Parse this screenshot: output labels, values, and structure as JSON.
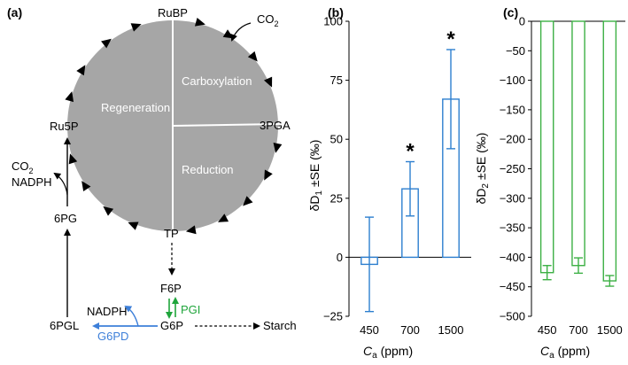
{
  "panel_a": {
    "label": "(a)",
    "sectors": {
      "regeneration": "Regeneration",
      "carboxylation": "Carboxylation",
      "reduction": "Reduction"
    },
    "nodes": {
      "rubp": "RuBP",
      "co2": "CO",
      "co2_sub": "2",
      "pga": "3PGA",
      "tp": "TP",
      "ru5p": "Ru5P",
      "co2_release": "CO",
      "co2_release_sub": "2",
      "nadph_release": "NADPH",
      "pg6": "6PG",
      "f6p": "F6P",
      "pgi": "PGI",
      "nadph": "NADPH",
      "g6p": "G6P",
      "pgl6": "6PGL",
      "g6pd": "G6PD",
      "starch": "Starch"
    },
    "colors": {
      "circle": "#a6a6a6",
      "pgi": "#1fa53b",
      "g6pd": "#3d7fd9"
    }
  },
  "chart_data": [
    {
      "panel": "(b)",
      "type": "bar",
      "categories": [
        "450",
        "700",
        "1500"
      ],
      "values": [
        -3,
        29,
        67
      ],
      "errors": [
        20,
        11.5,
        21
      ],
      "significance": [
        "",
        "*",
        "*"
      ],
      "ylabel": "δD",
      "ylabel_sub": "1",
      "ylabel_rest": " ±SE (‰)",
      "xlabel_var": "C",
      "xlabel_sub": "a",
      "xlabel_rest": " (ppm)",
      "ylim": [
        -25,
        100
      ],
      "yticks": [
        "100",
        "75",
        "50",
        "25",
        "0",
        "−25"
      ],
      "color": "#2d7fcf"
    },
    {
      "panel": "(c)",
      "type": "bar",
      "categories": [
        "450",
        "700",
        "1500"
      ],
      "values": [
        -426,
        -414,
        -440
      ],
      "errors": [
        12,
        13,
        9
      ],
      "ylabel": "δD",
      "ylabel_sub": "2",
      "ylabel_rest": " ±SE (‰)",
      "xlabel_var": "C",
      "xlabel_sub": "a",
      "xlabel_rest": " (ppm)",
      "ylim": [
        -500,
        0
      ],
      "yticks": [
        "0",
        "−50",
        "−100",
        "−150",
        "−200",
        "−250",
        "−300",
        "−350",
        "−400",
        "−450",
        "−500"
      ],
      "color": "#3cb044"
    }
  ]
}
